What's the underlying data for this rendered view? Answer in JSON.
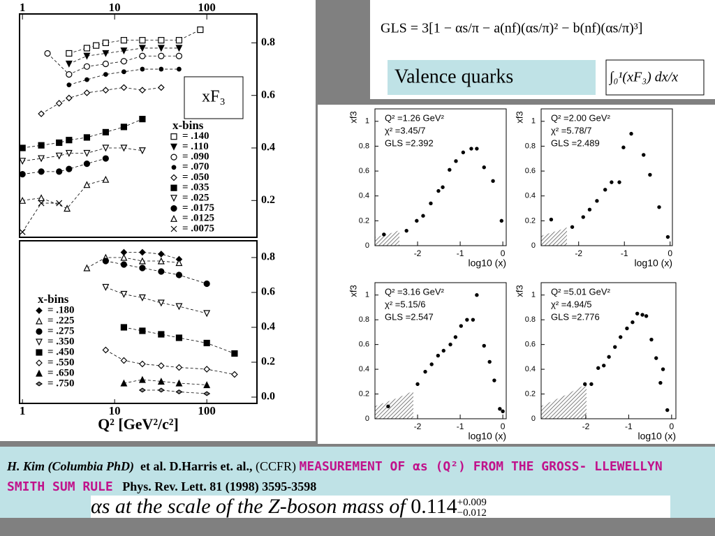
{
  "slide": {
    "formula": "GLS = 3[1 − αs/π − a(nf)(αs/π)² − b(nf)(αs/π)³]",
    "valence_label": "Valence quarks",
    "integral": "∫₀¹(xF₃) dx/x",
    "citation": {
      "author": "H. Kim (Columbia PhD)",
      "coauthors": "et al. D.Harris et. al.,",
      "collab": "(CCFR)",
      "title": "MEASUREMENT OF αs (Q²) FROM THE GROSS- LLEWELLYN SMITH SUM RULE",
      "journal": "Phys. Rev. Lett. 81 (1998) 3595-3598"
    },
    "result": {
      "text": "αs at the scale of the Z-boson mass of",
      "value": "0.114",
      "plus": "+0.009",
      "minus": "−0.012"
    }
  },
  "chart_data": [
    {
      "type": "scatter",
      "xscale": "log",
      "xlim": [
        0.93,
        350
      ],
      "ylim": [
        0.06,
        0.91
      ],
      "xticks": [
        1,
        10,
        100
      ],
      "yticks": [
        0.2,
        0.4,
        0.6,
        0.8
      ],
      "label": "xF₃",
      "legend_title": "x-bins",
      "series": [
        {
          "name": "= .140",
          "marker": "square-open",
          "x": [
            3.2,
            5,
            6.3,
            8,
            12.6,
            20,
            32,
            50,
            85
          ],
          "values": [
            0.76,
            0.78,
            0.79,
            0.8,
            0.81,
            0.81,
            0.81,
            0.81,
            0.85
          ]
        },
        {
          "name": "= .110",
          "marker": "tri-down",
          "x": [
            3.2,
            5,
            8,
            12.6,
            20,
            32,
            50
          ],
          "values": [
            0.72,
            0.75,
            0.76,
            0.77,
            0.78,
            0.78,
            0.78
          ]
        },
        {
          "name": "= .090",
          "marker": "circle-open",
          "x": [
            1.87,
            3.2,
            5,
            8,
            12.6,
            20,
            32,
            50
          ],
          "values": [
            0.76,
            0.68,
            0.71,
            0.72,
            0.73,
            0.75,
            0.75,
            0.75
          ]
        },
        {
          "name": "= .070",
          "marker": "dot",
          "x": [
            3.2,
            5,
            8,
            12.6,
            20,
            32,
            50
          ],
          "values": [
            0.64,
            0.66,
            0.68,
            0.69,
            0.7,
            0.7,
            0.7
          ]
        },
        {
          "name": "= .050",
          "marker": "diamond-open",
          "x": [
            1.6,
            2.5,
            3.2,
            5,
            8,
            12.6,
            20,
            32
          ],
          "values": [
            0.53,
            0.57,
            0.59,
            0.61,
            0.62,
            0.63,
            0.62,
            0.63
          ]
        },
        {
          "name": "= .035",
          "marker": "square",
          "x": [
            1,
            1.6,
            2.5,
            3.2,
            5,
            8,
            12.6,
            20
          ],
          "values": [
            0.4,
            0.41,
            0.42,
            0.43,
            0.44,
            0.46,
            0.48,
            0.51
          ]
        },
        {
          "name": "= .025",
          "marker": "tri-down-open",
          "x": [
            1,
            1.6,
            2.5,
            3.2,
            5,
            8,
            12.6,
            20
          ],
          "values": [
            0.35,
            0.36,
            0.37,
            0.38,
            0.38,
            0.4,
            0.4,
            0.39
          ]
        },
        {
          "name": "= .0175",
          "marker": "circle",
          "x": [
            1,
            1.6,
            2.5,
            3.2,
            5,
            8
          ],
          "values": [
            0.3,
            0.31,
            0.31,
            0.32,
            0.34,
            0.36
          ]
        },
        {
          "name": "= .0125",
          "marker": "tri-up-open",
          "x": [
            1,
            1.6,
            3.05,
            5,
            8
          ],
          "values": [
            0.2,
            0.21,
            0.17,
            0.26,
            0.28
          ]
        },
        {
          "name": "= .0075",
          "marker": "x",
          "x": [
            1,
            1.6,
            2.5
          ],
          "values": [
            0.08,
            0.19,
            0.19
          ]
        }
      ]
    },
    {
      "type": "scatter",
      "xscale": "log",
      "xlim": [
        0.93,
        350
      ],
      "ylim": [
        -0.036,
        0.896
      ],
      "xticks": [
        1,
        10,
        100
      ],
      "yticks": [
        {
          "value": 0,
          "label": "0.0"
        },
        0.2,
        0.4,
        0.6,
        0.8
      ],
      "xlabel": "Q² [GeV²/c²]",
      "legend_title": "x-bins",
      "series": [
        {
          "name": "= .180",
          "marker": "diamond",
          "x": [
            12.6,
            20,
            32,
            50
          ],
          "values": [
            0.83,
            0.83,
            0.82,
            0.79
          ]
        },
        {
          "name": "= .225",
          "marker": "tri-up-open",
          "x": [
            5,
            8,
            12.6,
            20,
            32,
            50
          ],
          "values": [
            0.74,
            0.8,
            0.8,
            0.78,
            0.78,
            0.77
          ]
        },
        {
          "name": "= .275",
          "marker": "circle",
          "x": [
            8,
            12.6,
            20,
            32,
            50,
            100
          ],
          "values": [
            0.78,
            0.76,
            0.74,
            0.72,
            0.7,
            0.65
          ]
        },
        {
          "name": "= .350",
          "marker": "tri-down-open",
          "x": [
            8,
            12.6,
            20,
            32,
            50,
            100
          ],
          "values": [
            0.63,
            0.59,
            0.57,
            0.54,
            0.52,
            0.48
          ]
        },
        {
          "name": "= .450",
          "marker": "square",
          "x": [
            12.6,
            20,
            32,
            50,
            100,
            200
          ],
          "values": [
            0.4,
            0.38,
            0.36,
            0.34,
            0.31,
            0.25
          ]
        },
        {
          "name": "= .550",
          "marker": "diamond-open",
          "x": [
            8,
            12.6,
            20,
            32,
            50,
            100,
            200
          ],
          "values": [
            0.27,
            0.21,
            0.19,
            0.18,
            0.17,
            0.16,
            0.13
          ]
        },
        {
          "name": "= .650",
          "marker": "tri-up",
          "x": [
            12.6,
            20,
            32,
            50,
            100
          ],
          "values": [
            0.08,
            0.1,
            0.09,
            0.08,
            0.07
          ]
        },
        {
          "name": "= .750",
          "marker": "diamond-half",
          "x": [
            20,
            32,
            50,
            100
          ],
          "values": [
            0.04,
            0.04,
            0.03,
            0.02
          ]
        }
      ]
    },
    {
      "type": "scatter",
      "xlim": [
        -3,
        0.08
      ],
      "ylim": [
        0,
        1.1
      ],
      "xticks": [
        -2,
        -1,
        0
      ],
      "yticks": [
        0,
        0.2,
        0.4,
        0.6,
        0.8,
        1
      ],
      "xlabel": "log10 (x)",
      "ylabel": "xf3",
      "annotations": [
        "Q² =1.26 GeV²",
        "χ² =3.45/7",
        "GLS =2.392"
      ],
      "series": [
        {
          "marker": "dot",
          "x": [
            -2.79,
            -2.26,
            -2.02,
            -1.87,
            -1.69,
            -1.51,
            -1.41,
            -1.25,
            -1.1,
            -0.93,
            -0.74,
            -0.61,
            -0.44,
            -0.23,
            -0.03
          ],
          "values": [
            0.09,
            0.12,
            0.2,
            0.24,
            0.34,
            0.44,
            0.47,
            0.61,
            0.68,
            0.75,
            0.78,
            0.78,
            0.63,
            0.52,
            0.2
          ]
        }
      ]
    },
    {
      "type": "scatter",
      "xlim": [
        -2.82,
        0.05
      ],
      "ylim": [
        0,
        1.1
      ],
      "xticks": [
        -2,
        -1,
        0
      ],
      "yticks": [
        0,
        0.2,
        0.4,
        0.6,
        0.8,
        1
      ],
      "xlabel": "log10 (x)",
      "ylabel": "xf3",
      "annotations": [
        "Q² =2.00 GeV²",
        "χ² =5.78/7",
        "GLS =2.489"
      ],
      "series": [
        {
          "marker": "dot",
          "x": [
            -2.6,
            -2.14,
            -1.9,
            -1.76,
            -1.6,
            -1.42,
            -1.28,
            -1.11,
            -1.02,
            -0.85,
            -0.58,
            -0.44,
            -0.24,
            -0.05
          ],
          "values": [
            0.21,
            0.15,
            0.23,
            0.29,
            0.36,
            0.45,
            0.51,
            0.51,
            0.79,
            0.9,
            0.73,
            0.57,
            0.31,
            0.07
          ]
        }
      ]
    },
    {
      "type": "scatter",
      "xlim": [
        -3,
        0.08
      ],
      "ylim": [
        0,
        1.1
      ],
      "xticks": [
        -2,
        -1,
        0
      ],
      "yticks": [
        0,
        0.2,
        0.4,
        0.6,
        0.8,
        1
      ],
      "xlabel": "log10 (x)",
      "ylabel": "xf3",
      "annotations": [
        "Q² =3.16 GeV²",
        "χ² =5.15/6",
        "GLS =2.547"
      ],
      "series": [
        {
          "marker": "dot",
          "x": [
            -2.69,
            -2,
            -1.82,
            -1.67,
            -1.52,
            -1.39,
            -1.23,
            -1.11,
            -0.98,
            -0.84,
            -0.7,
            -0.61,
            -0.44,
            -0.31,
            -0.2,
            -0.07,
            0
          ],
          "values": [
            0.1,
            0.28,
            0.38,
            0.44,
            0.51,
            0.55,
            0.6,
            0.66,
            0.75,
            0.8,
            0.8,
            1,
            0.59,
            0.46,
            0.31,
            0.08,
            0.06
          ]
        }
      ]
    },
    {
      "type": "scatter",
      "xlim": [
        -3.04,
        0.1
      ],
      "ylim": [
        0,
        1.1
      ],
      "xticks": [
        -2,
        -1,
        0
      ],
      "yticks": [
        0,
        0.2,
        0.4,
        0.6,
        0.8,
        1
      ],
      "xlabel": "log10 (x)",
      "ylabel": "xf3",
      "annotations": [
        "Q² =5.01 GeV²",
        "χ² =4.94/5",
        "GLS =2.776"
      ],
      "series": [
        {
          "marker": "dot",
          "x": [
            -2.02,
            -1.87,
            -1.71,
            -1.58,
            -1.46,
            -1.32,
            -1.19,
            -1.04,
            -0.91,
            -0.8,
            -0.68,
            -0.59,
            -0.47,
            -0.36,
            -0.26,
            -0.2,
            -0.1
          ],
          "values": [
            0.28,
            0.28,
            0.41,
            0.43,
            0.5,
            0.58,
            0.66,
            0.73,
            0.78,
            0.85,
            0.84,
            0.83,
            0.64,
            0.49,
            0.29,
            0.4,
            0.07
          ]
        }
      ]
    }
  ]
}
